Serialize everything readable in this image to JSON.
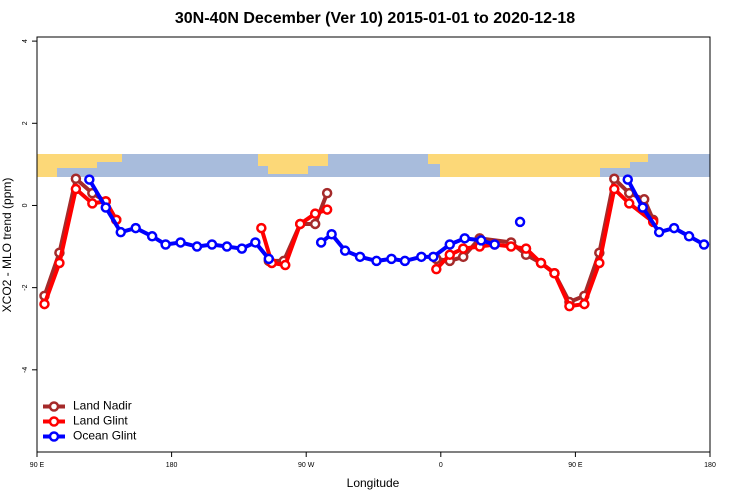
{
  "chart_data": {
    "type": "line",
    "title": "30N-40N December (Ver 10)   2015-01-01 to 2020-12-18",
    "xlabel": "Longitude",
    "ylabel": "XCO2 - MLO trend (ppm)",
    "xlim": [
      90,
      540
    ],
    "xticks": [
      {
        "value": 90,
        "label": "90 E"
      },
      180,
      {
        "value": 270,
        "label": "90 W"
      },
      {
        "value": 360,
        "label": "0"
      },
      {
        "value": 450,
        "label": "90 E"
      },
      {
        "value": 540,
        "label": "180"
      }
    ],
    "ylim": [
      -6,
      4.1
    ],
    "yticks": [
      4,
      2,
      0,
      -2,
      -4
    ],
    "legend": "bottomleft",
    "series": [
      {
        "name": "Land Nadir",
        "color": "#a52a2a",
        "x": [
          95,
          105,
          116,
          127,
          136,
          143,
          195,
          245,
          255,
          266,
          276,
          284,
          320,
          357,
          366,
          375,
          386,
          407,
          417,
          427,
          436,
          446,
          456,
          466,
          476,
          486,
          496,
          502
        ],
        "values": [
          -2.2,
          -1.15,
          0.65,
          0.3,
          0.1,
          -0.35,
          null,
          -1.35,
          -1.35,
          -0.45,
          -0.45,
          0.3,
          null,
          -1.3,
          -1.35,
          -1.25,
          -0.8,
          -0.9,
          -1.2,
          -1.4,
          -1.65,
          -2.35,
          -2.2,
          -1.15,
          0.65,
          0.3,
          0.15,
          -0.35
        ]
      },
      {
        "name": "Land Glint",
        "color": "#ff0000",
        "x": [
          95,
          105,
          116,
          127,
          136,
          143,
          195,
          240,
          247,
          256,
          266,
          276,
          284,
          320,
          357,
          366,
          375,
          386,
          396,
          407,
          417,
          427,
          436,
          446,
          456,
          466,
          476,
          486,
          502
        ],
        "values": [
          -2.4,
          -1.4,
          0.4,
          0.05,
          0.1,
          -0.35,
          null,
          -0.55,
          -1.4,
          -1.45,
          -0.45,
          -0.2,
          -0.1,
          null,
          -1.55,
          -1.2,
          -1.05,
          -1.0,
          -0.95,
          -1.0,
          -1.05,
          -1.4,
          -1.65,
          -2.45,
          -2.4,
          -1.4,
          0.4,
          0.05,
          -0.4
        ]
      },
      {
        "name": "Ocean Glint",
        "color": "#0000ff",
        "x": [
          125,
          136,
          146,
          156,
          167,
          176,
          186,
          197,
          207,
          217,
          227,
          236,
          245,
          260,
          280,
          287,
          296,
          306,
          317,
          327,
          336,
          347,
          355,
          366,
          376,
          387,
          396,
          405,
          413,
          450,
          485,
          495,
          506,
          516,
          526,
          536
        ],
        "values": [
          0.63,
          -0.05,
          -0.65,
          -0.55,
          -0.75,
          -0.95,
          -0.9,
          -1.0,
          -0.95,
          -1.0,
          -1.05,
          -0.9,
          -1.3,
          null,
          -0.9,
          -0.7,
          -1.1,
          -1.25,
          -1.35,
          -1.3,
          -1.35,
          -1.25,
          -1.25,
          -0.95,
          -0.8,
          -0.85,
          -0.95,
          null,
          -0.4,
          null,
          0.63,
          -0.05,
          -0.65,
          -0.55,
          -0.75,
          -0.95
        ]
      }
    ]
  }
}
